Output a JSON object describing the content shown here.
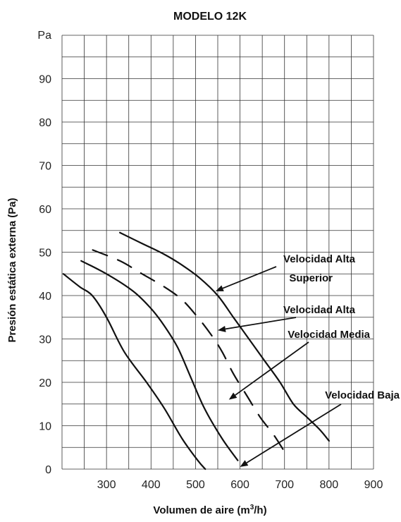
{
  "chart_data": {
    "type": "line",
    "title": "MODELO 12K",
    "xlabel": "Volumen de aire (m",
    "xlabel_sup": "3",
    "xlabel_end": "/h)",
    "ylabel": "Presión estática externa (Pa)",
    "y_unit_label": "Pa",
    "xlim": [
      200,
      900
    ],
    "ylim": [
      0,
      100
    ],
    "x_ticks": [
      300,
      400,
      500,
      600,
      700,
      800,
      900
    ],
    "y_ticks": [
      0,
      10,
      20,
      30,
      40,
      50,
      60,
      70,
      80,
      90
    ],
    "grid": true,
    "series": [
      {
        "name": "Velocidad Baja",
        "style": "solid",
        "points": [
          [
            203,
            45
          ],
          [
            240,
            42
          ],
          [
            268,
            40
          ],
          [
            300,
            35
          ],
          [
            340,
            27
          ],
          [
            390,
            20
          ],
          [
            430,
            14
          ],
          [
            470,
            7
          ],
          [
            505,
            2
          ],
          [
            522,
            0
          ]
        ]
      },
      {
        "name": "Velocidad Media",
        "style": "solid",
        "points": [
          [
            243,
            48
          ],
          [
            300,
            45
          ],
          [
            360,
            41
          ],
          [
            400,
            37
          ],
          [
            430,
            33
          ],
          [
            460,
            28
          ],
          [
            490,
            21
          ],
          [
            520,
            14
          ],
          [
            560,
            7
          ],
          [
            595,
            2
          ]
        ]
      },
      {
        "name": "Velocidad Alta",
        "style": "dashed",
        "points": [
          [
            269,
            50.5
          ],
          [
            330,
            48
          ],
          [
            380,
            45
          ],
          [
            430,
            42
          ],
          [
            470,
            39
          ],
          [
            505,
            35
          ],
          [
            535,
            31
          ],
          [
            560,
            27
          ],
          [
            585,
            22
          ],
          [
            615,
            17
          ],
          [
            645,
            12
          ],
          [
            675,
            8
          ],
          [
            700,
            4
          ]
        ]
      },
      {
        "name": "Velocidad Alta Superior",
        "style": "solid",
        "points": [
          [
            330,
            54.5
          ],
          [
            380,
            52
          ],
          [
            430,
            49.5
          ],
          [
            470,
            47
          ],
          [
            510,
            44
          ],
          [
            550,
            40
          ],
          [
            585,
            35
          ],
          [
            620,
            30
          ],
          [
            655,
            25
          ],
          [
            690,
            20
          ],
          [
            720,
            15
          ],
          [
            750,
            12
          ],
          [
            780,
            9
          ],
          [
            800,
            6.5
          ]
        ]
      }
    ],
    "annotations": [
      {
        "text": "Velocidad Alta",
        "text2": "Superior",
        "target": [
          545,
          41
        ]
      },
      {
        "text": "Velocidad Alta",
        "target": [
          550,
          32
        ]
      },
      {
        "text": "Velocidad Media",
        "target": [
          575,
          16
        ]
      },
      {
        "text": "Velocidad Baja",
        "target": [
          600,
          0.5
        ]
      }
    ]
  }
}
